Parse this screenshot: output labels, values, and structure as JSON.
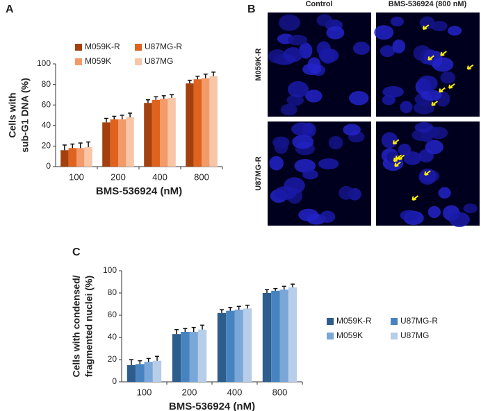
{
  "panel_labels": [
    "A",
    "B",
    "C"
  ],
  "micrographs": {
    "columns": [
      "Control",
      "BMS-536924 (800 nM)"
    ],
    "rows": [
      "M059K-R",
      "U87MG-R"
    ]
  },
  "chart_data": [
    {
      "type": "bar",
      "ylabel": [
        "Cells with",
        "sub-G1 DNA (%)"
      ],
      "xlabel": "BMS-536924 (nM)",
      "categories": [
        "100",
        "200",
        "400",
        "800"
      ],
      "ylim": [
        0,
        100
      ],
      "yticks": [
        0,
        20,
        40,
        60,
        80,
        100
      ],
      "legend": "top",
      "error_bars": true,
      "series": [
        {
          "name": "M059K-R",
          "color": "#a3400e",
          "values": [
            16,
            43,
            62,
            81
          ],
          "errors": [
            5,
            4,
            3,
            3
          ]
        },
        {
          "name": "U87MG-R",
          "color": "#e0621f",
          "values": [
            18,
            46,
            65,
            85
          ],
          "errors": [
            4,
            3,
            3,
            3
          ]
        },
        {
          "name": "M059K",
          "color": "#f29a68",
          "values": [
            18,
            46,
            66,
            86
          ],
          "errors": [
            5,
            4,
            3,
            4
          ]
        },
        {
          "name": "U87MG",
          "color": "#f8c6a6",
          "values": [
            19,
            48,
            67,
            88
          ],
          "errors": [
            5,
            4,
            3,
            4
          ]
        }
      ]
    },
    {
      "type": "bar",
      "ylabel": [
        "Cells with condensed/",
        "fragmented nuclei (%)"
      ],
      "xlabel": "BMS-536924 (nM)",
      "categories": [
        "100",
        "200",
        "400",
        "800"
      ],
      "ylim": [
        0,
        100
      ],
      "yticks": [
        0,
        20,
        40,
        60,
        80,
        100
      ],
      "legend": "right",
      "error_bars": true,
      "series": [
        {
          "name": "M059K-R",
          "color": "#2d5d8c",
          "values": [
            15,
            43,
            62,
            80
          ],
          "errors": [
            5,
            4,
            3,
            3
          ]
        },
        {
          "name": "U87MG-R",
          "color": "#4784bf",
          "values": [
            16,
            45,
            64,
            82
          ],
          "errors": [
            3,
            3,
            3,
            2
          ]
        },
        {
          "name": "M059K",
          "color": "#7aa6d8",
          "values": [
            18,
            45,
            65,
            83
          ],
          "errors": [
            3,
            4,
            3,
            3
          ]
        },
        {
          "name": "U87MG",
          "color": "#b7cde8",
          "values": [
            19,
            47,
            66,
            85
          ],
          "errors": [
            4,
            4,
            3,
            3
          ]
        }
      ]
    }
  ]
}
